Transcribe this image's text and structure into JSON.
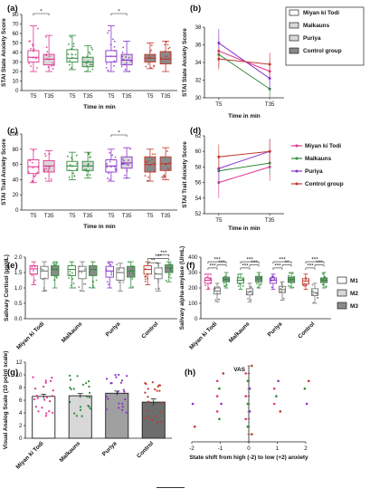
{
  "colors": {
    "miyan": "#e0338f",
    "malkauns": "#2e8b3a",
    "puriya": "#8b33c9",
    "control": "#c0392b",
    "control_box": "#8a8a8a",
    "light_box": "#d8d8d8",
    "axis": "#222222"
  },
  "legend_b": [
    "Miyan ki Todi",
    "Malkauns",
    "Puriya",
    "Control group"
  ],
  "legend_d": [
    "Miyan ki Todi",
    "Malkauns",
    "Puriya",
    "Control group"
  ],
  "legend_f": [
    "M1",
    "M2",
    "M3"
  ],
  "chart_data": [
    {
      "id": "a",
      "panel": "(a)",
      "type": "box",
      "ylabel": "STAI State Anxiety Score",
      "xlabel": "Time in min",
      "ylim": [
        0,
        80
      ],
      "yticks": [
        0,
        10,
        20,
        30,
        40,
        50,
        60,
        70,
        80
      ],
      "groups": [
        "Miyan ki Todi",
        "Malkauns",
        "Puriya",
        "Control group"
      ],
      "categories": [
        "T5",
        "T35"
      ],
      "series": [
        {
          "name": "Miyan ki Todi",
          "T5": {
            "min": 20,
            "q1": 30,
            "med": 35,
            "q3": 42,
            "max": 68,
            "mean": 35
          },
          "T35": {
            "min": 20,
            "q1": 27,
            "med": 33,
            "q3": 38,
            "max": 58,
            "mean": 33
          }
        },
        {
          "name": "Malkauns",
          "T5": {
            "min": 22,
            "q1": 30,
            "med": 34,
            "q3": 43,
            "max": 58,
            "mean": 35
          },
          "T35": {
            "min": 20,
            "q1": 25,
            "med": 30,
            "q3": 35,
            "max": 47,
            "mean": 31
          }
        },
        {
          "name": "Puriya",
          "T5": {
            "min": 20,
            "q1": 30,
            "med": 36,
            "q3": 42,
            "max": 68,
            "mean": 36
          },
          "T35": {
            "min": 20,
            "q1": 27,
            "med": 32,
            "q3": 38,
            "max": 52,
            "mean": 32
          }
        },
        {
          "name": "Control group",
          "T5": {
            "min": 23,
            "q1": 30,
            "med": 34,
            "q3": 38,
            "max": 50,
            "mean": 35
          },
          "T35": {
            "min": 20,
            "q1": 28,
            "med": 33,
            "q3": 41,
            "max": 52,
            "mean": 34
          }
        }
      ],
      "significance": [
        "*",
        "*"
      ]
    },
    {
      "id": "b",
      "panel": "(b)",
      "type": "line",
      "ylabel": "STAI State Anxiety Score",
      "xlabel": "Time in min",
      "ylim": [
        30,
        38
      ],
      "yticks": [
        30,
        32,
        34,
        36,
        38
      ],
      "categories": [
        "T5",
        "T35"
      ],
      "series": [
        {
          "name": "Miyan ki Todi",
          "values": [
            35.3,
            33.0
          ],
          "err": [
            1.5,
            1.4
          ]
        },
        {
          "name": "Malkauns",
          "values": [
            34.9,
            31.0
          ],
          "err": [
            1.4,
            1.2
          ]
        },
        {
          "name": "Puriya",
          "values": [
            36.2,
            32.2
          ],
          "err": [
            1.6,
            1.4
          ]
        },
        {
          "name": "Control group",
          "values": [
            34.4,
            33.8
          ],
          "err": [
            1.2,
            1.3
          ]
        }
      ]
    },
    {
      "id": "c",
      "panel": "(c)",
      "type": "box",
      "ylabel": "STAI Trait Anxiety Score",
      "xlabel": "Time in min",
      "ylim": [
        0,
        100
      ],
      "yticks": [
        0,
        20,
        40,
        60,
        80,
        100
      ],
      "groups": [
        "Miyan ki Todi",
        "Malkauns",
        "Puriya",
        "Control group"
      ],
      "categories": [
        "T5",
        "T35"
      ],
      "series": [
        {
          "name": "Miyan ki Todi",
          "T5": {
            "min": 36,
            "q1": 48,
            "med": 57,
            "q3": 66,
            "max": 80,
            "mean": 56
          },
          "T35": {
            "min": 38,
            "q1": 50,
            "med": 58,
            "q3": 65,
            "max": 78,
            "mean": 58
          }
        },
        {
          "name": "Malkauns",
          "T5": {
            "min": 40,
            "q1": 52,
            "med": 58,
            "q3": 64,
            "max": 76,
            "mean": 58
          },
          "T35": {
            "min": 42,
            "q1": 52,
            "med": 58,
            "q3": 64,
            "max": 76,
            "mean": 58
          }
        },
        {
          "name": "Puriya",
          "T5": {
            "min": 38,
            "q1": 50,
            "med": 58,
            "q3": 66,
            "max": 80,
            "mean": 57
          },
          "T35": {
            "min": 42,
            "q1": 55,
            "med": 62,
            "q3": 70,
            "max": 82,
            "mean": 60
          }
        },
        {
          "name": "Control group",
          "T5": {
            "min": 38,
            "q1": 50,
            "med": 60,
            "q3": 70,
            "max": 80,
            "mean": 59
          },
          "T35": {
            "min": 40,
            "q1": 52,
            "med": 61,
            "q3": 70,
            "max": 82,
            "mean": 60
          }
        }
      ],
      "significance": [
        "*"
      ]
    },
    {
      "id": "d",
      "panel": "(d)",
      "type": "line",
      "ylabel": "STAI Trait Anxiety Score",
      "xlabel": "Time in min",
      "ylim": [
        52,
        62
      ],
      "yticks": [
        52,
        54,
        56,
        58,
        60,
        62
      ],
      "categories": [
        "T5",
        "T35"
      ],
      "series": [
        {
          "name": "Miyan ki Todi",
          "values": [
            56.0,
            58.0
          ],
          "err": [
            2.0,
            1.8
          ]
        },
        {
          "name": "Malkauns",
          "values": [
            57.5,
            58.5
          ],
          "err": [
            1.6,
            1.5
          ]
        },
        {
          "name": "Puriya",
          "values": [
            57.8,
            60.0
          ],
          "err": [
            1.7,
            1.6
          ]
        },
        {
          "name": "Control group",
          "values": [
            59.3,
            60.0
          ],
          "err": [
            1.6,
            1.6
          ]
        }
      ]
    },
    {
      "id": "e",
      "panel": "(e)",
      "type": "box",
      "ylabel": "Salivary Cortisol (µg/dL)",
      "xlabel": "",
      "ylim": [
        0.0,
        2.0
      ],
      "yticks": [
        0.0,
        0.5,
        1.0,
        1.5,
        2.0
      ],
      "ytick_labels": [
        "0.0",
        "0.5",
        "1.0",
        "1.5",
        "2.0"
      ],
      "groups": [
        "Miyan ki Todi",
        "Malkauns",
        "Puriya",
        "Control"
      ],
      "categories": [
        "M1",
        "M2",
        "M3"
      ],
      "series": [
        {
          "name": "Miyan ki Todi",
          "M1": {
            "min": 1.1,
            "q1": 1.45,
            "med": 1.62,
            "q3": 1.72,
            "max": 1.85
          },
          "M2": {
            "min": 0.9,
            "q1": 1.3,
            "med": 1.55,
            "q3": 1.7,
            "max": 1.85
          },
          "M3": {
            "min": 1.0,
            "q1": 1.4,
            "med": 1.6,
            "q3": 1.72,
            "max": 1.85
          }
        },
        {
          "name": "Malkauns",
          "M1": {
            "min": 1.0,
            "q1": 1.4,
            "med": 1.6,
            "q3": 1.72,
            "max": 1.85
          },
          "M2": {
            "min": 0.9,
            "q1": 1.3,
            "med": 1.55,
            "q3": 1.7,
            "max": 1.85
          },
          "M3": {
            "min": 1.0,
            "q1": 1.4,
            "med": 1.6,
            "q3": 1.72,
            "max": 1.85
          }
        },
        {
          "name": "Puriya",
          "M1": {
            "min": 1.0,
            "q1": 1.35,
            "med": 1.55,
            "q3": 1.7,
            "max": 1.85
          },
          "M2": {
            "min": 0.9,
            "q1": 1.25,
            "med": 1.5,
            "q3": 1.65,
            "max": 1.8
          },
          "M3": {
            "min": 1.0,
            "q1": 1.35,
            "med": 1.55,
            "q3": 1.7,
            "max": 1.85
          }
        },
        {
          "name": "Control",
          "M1": {
            "min": 1.1,
            "q1": 1.45,
            "med": 1.6,
            "q3": 1.72,
            "max": 1.85
          },
          "M2": {
            "min": 0.9,
            "q1": 1.3,
            "med": 1.45,
            "q3": 1.65,
            "max": 1.8
          },
          "M3": {
            "min": 1.2,
            "q1": 1.5,
            "med": 1.65,
            "q3": 1.75,
            "max": 1.85
          }
        }
      ],
      "significance": [
        "***",
        "***",
        "**"
      ]
    },
    {
      "id": "f",
      "panel": "(f)",
      "type": "box",
      "ylabel": "Salivary alpha-amylase (U/mL)",
      "xlabel": "",
      "ylim": [
        0,
        400
      ],
      "yticks": [
        0,
        100,
        200,
        300,
        400
      ],
      "groups": [
        "Miyan ki Todi",
        "Malkauns",
        "Puriya",
        "Control"
      ],
      "categories": [
        "M1",
        "M2",
        "M3"
      ],
      "series": [
        {
          "name": "Miyan ki Todi",
          "M1": {
            "min": 190,
            "q1": 230,
            "med": 250,
            "q3": 265,
            "max": 290
          },
          "M2": {
            "min": 110,
            "q1": 160,
            "med": 180,
            "q3": 200,
            "max": 230
          },
          "M3": {
            "min": 200,
            "q1": 240,
            "med": 255,
            "q3": 270,
            "max": 300
          }
        },
        {
          "name": "Malkauns",
          "M1": {
            "min": 190,
            "q1": 230,
            "med": 250,
            "q3": 265,
            "max": 290
          },
          "M2": {
            "min": 110,
            "q1": 155,
            "med": 175,
            "q3": 195,
            "max": 230
          },
          "M3": {
            "min": 200,
            "q1": 240,
            "med": 260,
            "q3": 275,
            "max": 300
          }
        },
        {
          "name": "Puriya",
          "M1": {
            "min": 190,
            "q1": 230,
            "med": 250,
            "q3": 265,
            "max": 290
          },
          "M2": {
            "min": 120,
            "q1": 170,
            "med": 190,
            "q3": 210,
            "max": 240
          },
          "M3": {
            "min": 200,
            "q1": 235,
            "med": 255,
            "q3": 270,
            "max": 300
          }
        },
        {
          "name": "Control",
          "M1": {
            "min": 190,
            "q1": 225,
            "med": 245,
            "q3": 260,
            "max": 290
          },
          "M2": {
            "min": 100,
            "q1": 150,
            "med": 170,
            "q3": 195,
            "max": 230
          },
          "M3": {
            "min": 200,
            "q1": 235,
            "med": 250,
            "q3": 265,
            "max": 300
          }
        }
      ],
      "significance": [
        "***",
        "***",
        "***",
        "***",
        "***",
        "***",
        "***",
        "**",
        "***",
        "***",
        "***",
        "***"
      ]
    },
    {
      "id": "g",
      "panel": "(g)",
      "type": "bar",
      "ylabel": "Visual Analog Scale (10 point scale)",
      "xlabel": "",
      "ylim": [
        0,
        12
      ],
      "yticks": [
        0,
        2,
        4,
        6,
        8,
        10,
        12
      ],
      "categories": [
        "Miyan ki Todi",
        "Malkauns",
        "Puriya",
        "Control"
      ],
      "values": [
        6.6,
        6.7,
        7.1,
        5.7
      ],
      "err": [
        0.35,
        0.35,
        0.35,
        0.5
      ]
    },
    {
      "id": "h",
      "panel": "(h)",
      "type": "scatter",
      "ylabel": "VAS",
      "xlabel": "State shift from high (-2) to low (+2) anxiety",
      "xlim": [
        -2,
        2
      ],
      "xticks": [
        -2,
        -1,
        0,
        1,
        2
      ],
      "ylim": [
        0,
        10
      ],
      "series": [
        {
          "name": "Miyan ki Todi",
          "points": [
            [
              -1,
              8
            ],
            [
              -1,
              6
            ],
            [
              -1,
              4
            ],
            [
              0,
              9
            ],
            [
              0,
              6
            ],
            [
              0,
              3
            ],
            [
              1,
              7
            ],
            [
              1,
              5
            ]
          ]
        },
        {
          "name": "Malkauns",
          "points": [
            [
              -1,
              7
            ],
            [
              -1,
              3
            ],
            [
              0,
              8
            ],
            [
              0,
              5
            ],
            [
              0,
              2
            ],
            [
              1,
              6
            ],
            [
              2,
              7
            ]
          ]
        },
        {
          "name": "Puriya",
          "points": [
            [
              -2,
              5
            ],
            [
              -1,
              5
            ],
            [
              0,
              7
            ],
            [
              0,
              4
            ],
            [
              1,
              8
            ],
            [
              2,
              5
            ]
          ]
        },
        {
          "name": "Control group",
          "points": [
            [
              -2,
              2
            ],
            [
              -1,
              9
            ],
            [
              0,
              10
            ],
            [
              0,
              1
            ],
            [
              1,
              4
            ],
            [
              2,
              8
            ]
          ]
        }
      ]
    }
  ]
}
